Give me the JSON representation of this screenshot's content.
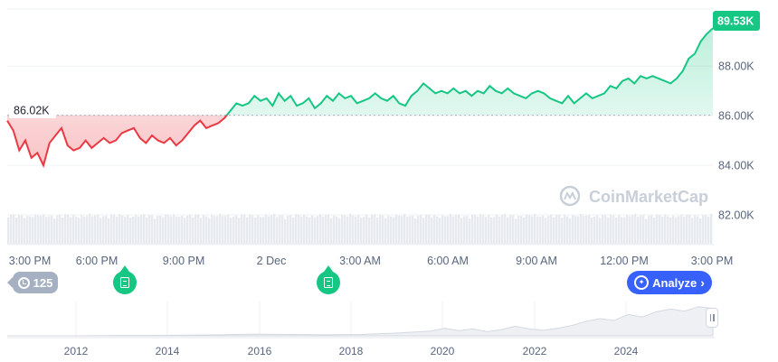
{
  "chart_data": {
    "type": "area",
    "series_points": [
      [
        0,
        85.8
      ],
      [
        1,
        85.4
      ],
      [
        2,
        84.6
      ],
      [
        3,
        85.0
      ],
      [
        4,
        84.3
      ],
      [
        5,
        84.5
      ],
      [
        6,
        84.0
      ],
      [
        7,
        84.9
      ],
      [
        8,
        85.2
      ],
      [
        9,
        85.5
      ],
      [
        10,
        84.8
      ],
      [
        11,
        84.6
      ],
      [
        12,
        84.7
      ],
      [
        13,
        85.0
      ],
      [
        14,
        84.7
      ],
      [
        15,
        84.9
      ],
      [
        16,
        85.1
      ],
      [
        17,
        84.9
      ],
      [
        18,
        85.0
      ],
      [
        19,
        85.3
      ],
      [
        20,
        85.4
      ],
      [
        21,
        85.5
      ],
      [
        22,
        85.1
      ],
      [
        23,
        84.9
      ],
      [
        24,
        85.2
      ],
      [
        25,
        85.0
      ],
      [
        26,
        84.9
      ],
      [
        27,
        85.1
      ],
      [
        28,
        84.8
      ],
      [
        29,
        85.0
      ],
      [
        30,
        85.3
      ],
      [
        31,
        85.6
      ],
      [
        32,
        85.8
      ],
      [
        33,
        85.5
      ],
      [
        34,
        85.6
      ],
      [
        35,
        85.7
      ],
      [
        36,
        85.9
      ],
      [
        37,
        86.2
      ],
      [
        38,
        86.5
      ],
      [
        39,
        86.4
      ],
      [
        40,
        86.5
      ],
      [
        41,
        86.8
      ],
      [
        42,
        86.6
      ],
      [
        43,
        86.7
      ],
      [
        44,
        86.4
      ],
      [
        45,
        86.9
      ],
      [
        46,
        86.6
      ],
      [
        47,
        86.8
      ],
      [
        48,
        86.4
      ],
      [
        49,
        86.5
      ],
      [
        50,
        86.7
      ],
      [
        51,
        86.3
      ],
      [
        52,
        86.5
      ],
      [
        53,
        86.8
      ],
      [
        54,
        86.6
      ],
      [
        55,
        86.9
      ],
      [
        56,
        86.7
      ],
      [
        57,
        86.8
      ],
      [
        58,
        86.5
      ],
      [
        59,
        86.6
      ],
      [
        60,
        86.7
      ],
      [
        61,
        86.9
      ],
      [
        62,
        86.7
      ],
      [
        63,
        86.6
      ],
      [
        64,
        86.8
      ],
      [
        65,
        86.5
      ],
      [
        66,
        86.4
      ],
      [
        67,
        86.8
      ],
      [
        68,
        87.0
      ],
      [
        69,
        87.3
      ],
      [
        70,
        87.1
      ],
      [
        71,
        86.9
      ],
      [
        72,
        87.0
      ],
      [
        73,
        86.9
      ],
      [
        74,
        87.1
      ],
      [
        75,
        86.9
      ],
      [
        76,
        87.0
      ],
      [
        77,
        86.8
      ],
      [
        78,
        87.0
      ],
      [
        79,
        86.9
      ],
      [
        80,
        87.2
      ],
      [
        81,
        87.0
      ],
      [
        82,
        86.9
      ],
      [
        83,
        87.1
      ],
      [
        84,
        86.9
      ],
      [
        85,
        86.8
      ],
      [
        86,
        86.7
      ],
      [
        87,
        86.9
      ],
      [
        88,
        87.0
      ],
      [
        89,
        86.9
      ],
      [
        90,
        86.7
      ],
      [
        91,
        86.6
      ],
      [
        92,
        86.5
      ],
      [
        93,
        86.8
      ],
      [
        94,
        86.5
      ],
      [
        95,
        86.7
      ],
      [
        96,
        86.9
      ],
      [
        97,
        86.7
      ],
      [
        98,
        86.8
      ],
      [
        99,
        86.9
      ],
      [
        100,
        87.2
      ],
      [
        101,
        87.1
      ],
      [
        102,
        87.4
      ],
      [
        103,
        87.5
      ],
      [
        104,
        87.3
      ],
      [
        105,
        87.6
      ],
      [
        106,
        87.5
      ],
      [
        107,
        87.6
      ],
      [
        108,
        87.5
      ],
      [
        109,
        87.4
      ],
      [
        110,
        87.3
      ],
      [
        111,
        87.5
      ],
      [
        112,
        87.8
      ],
      [
        113,
        88.3
      ],
      [
        114,
        88.5
      ],
      [
        115,
        89.0
      ],
      [
        116,
        89.3
      ],
      [
        117,
        89.53
      ]
    ],
    "baseline": 86.02,
    "baseline_label": "86.02K",
    "last_value_label": "89.53K",
    "ylim": [
      80.8,
      90.3
    ],
    "y_ticks": [
      {
        "value": 88,
        "label": "88.00K"
      },
      {
        "value": 86,
        "label": "86.00K"
      },
      {
        "value": 84,
        "label": "84.00K"
      },
      {
        "value": 82,
        "label": "82.00K"
      }
    ],
    "x_ticks": [
      "3:00 PM",
      "6:00 PM",
      "9:00 PM",
      "2 Dec",
      "3:00 AM",
      "6:00 AM",
      "9:00 AM",
      "12:00 PM",
      "3:00 PM"
    ],
    "navigator_years": [
      "2012",
      "2014",
      "2016",
      "2018",
      "2020",
      "2022",
      "2024"
    ],
    "navigator_points": [
      [
        0,
        0.0
      ],
      [
        5,
        0.0
      ],
      [
        10,
        0.0
      ],
      [
        15,
        0.01
      ],
      [
        20,
        0.01
      ],
      [
        25,
        0.02
      ],
      [
        30,
        0.03
      ],
      [
        35,
        0.05
      ],
      [
        40,
        0.04
      ],
      [
        45,
        0.03
      ],
      [
        50,
        0.04
      ],
      [
        55,
        0.08
      ],
      [
        60,
        0.14
      ],
      [
        62,
        0.22
      ],
      [
        64,
        0.15
      ],
      [
        66,
        0.2
      ],
      [
        68,
        0.12
      ],
      [
        70,
        0.18
      ],
      [
        72,
        0.28
      ],
      [
        74,
        0.2
      ],
      [
        76,
        0.16
      ],
      [
        78,
        0.22
      ],
      [
        80,
        0.3
      ],
      [
        82,
        0.42
      ],
      [
        84,
        0.5
      ],
      [
        86,
        0.45
      ],
      [
        88,
        0.62
      ],
      [
        90,
        0.55
      ],
      [
        92,
        0.7
      ],
      [
        94,
        0.78
      ],
      [
        96,
        0.72
      ],
      [
        98,
        0.85
      ],
      [
        100,
        0.8
      ]
    ],
    "grid": true,
    "watermark": "CoinMarketCap",
    "colors": {
      "up_line": "#16c784",
      "down_line": "#ea3943",
      "up_fill": "#16c784",
      "down_fill": "#ea3943",
      "baseline": "#a6b0c3",
      "grid": "#eff2f5",
      "volume": "#e6e9ee"
    }
  },
  "controls": {
    "history_count": "125",
    "analyze_label": "Analyze",
    "history_icon": "history-icon",
    "news_icon": "document-icon",
    "analyze_icon": "ai-analyze-icon"
  }
}
